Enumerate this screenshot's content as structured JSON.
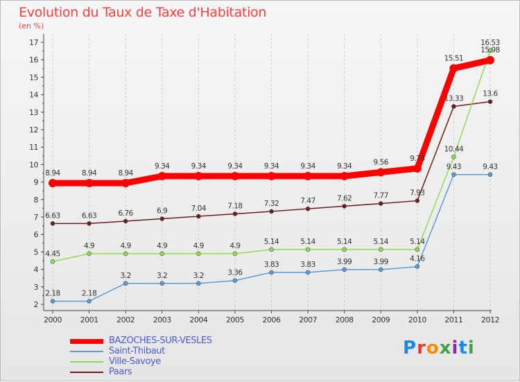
{
  "header": {
    "title": "Evolution du Taux de Taxe d'Habitation",
    "unit": "(en %)"
  },
  "brand": {
    "text": "Proxiti",
    "letter_colors": [
      "#1e88e5",
      "#e53935",
      "#fb8c00",
      "#43a047",
      "#8e24aa",
      "#1e88e5",
      "#43a047"
    ]
  },
  "colors": {
    "axis": "#444444",
    "gridline": "#cccccc",
    "label": "#333333"
  },
  "chart_data": {
    "type": "line",
    "title": "Evolution du Taux de Taxe d'Habitation",
    "ylabel": "(en %)",
    "xlabel": "",
    "ylim": [
      2,
      17
    ],
    "yticks": [
      2,
      3,
      4,
      5,
      6,
      7,
      8,
      9,
      10,
      11,
      12,
      13,
      14,
      15,
      16,
      17
    ],
    "grid": "vertical dashed",
    "legend_position": "bottom-left",
    "x": [
      "2000",
      "2001",
      "2002",
      "2003",
      "2004",
      "2005",
      "2006",
      "2007",
      "2008",
      "2009",
      "2010",
      "2011",
      "2012"
    ],
    "series": [
      {
        "name": "BAZOCHES-SUR-VESLES",
        "color": "#ff0000",
        "values": [
          8.94,
          8.94,
          8.94,
          9.34,
          9.34,
          9.34,
          9.34,
          9.34,
          9.34,
          9.56,
          9.78,
          15.51,
          15.98
        ]
      },
      {
        "name": "Saint-Thibaut",
        "color": "#5b9bd5",
        "values": [
          2.18,
          2.18,
          3.2,
          3.2,
          3.2,
          3.36,
          3.83,
          3.83,
          3.99,
          3.99,
          4.16,
          9.43,
          9.43
        ]
      },
      {
        "name": "Ville-Savoye",
        "color": "#8ddc4f",
        "values": [
          4.45,
          4.9,
          4.9,
          4.9,
          4.9,
          4.9,
          5.14,
          5.14,
          5.14,
          5.14,
          5.14,
          10.44,
          16.53
        ]
      },
      {
        "name": "Paars",
        "color": "#6b1c1c",
        "values": [
          6.63,
          6.63,
          6.76,
          6.9,
          7.04,
          7.18,
          7.32,
          7.47,
          7.62,
          7.77,
          7.93,
          13.33,
          13.6
        ]
      }
    ]
  }
}
